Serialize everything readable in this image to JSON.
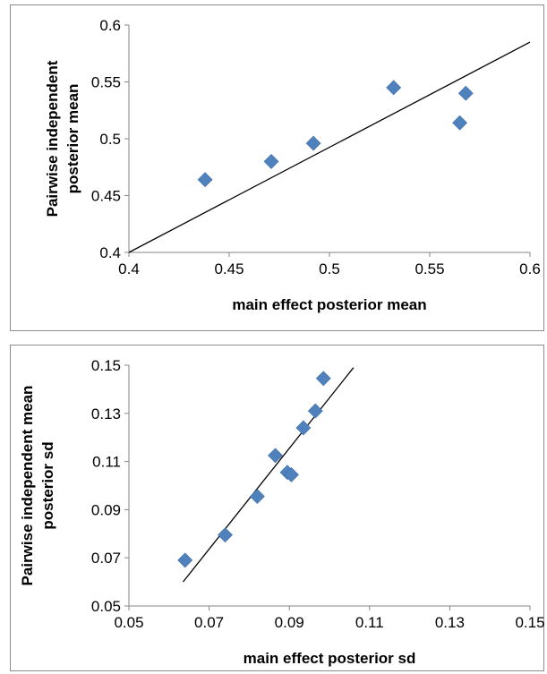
{
  "chart_data": [
    {
      "type": "scatter",
      "title": "",
      "xlabel": "main effect posterior mean",
      "ylabel_lines": [
        "Pairwise independent",
        "posterior mean"
      ],
      "xlim": [
        0.4,
        0.6
      ],
      "ylim": [
        0.4,
        0.6
      ],
      "xticks": [
        "0.4",
        "0.45",
        "0.5",
        "0.55",
        "0.6"
      ],
      "yticks": [
        "0.4",
        "0.45",
        "0.5",
        "0.55",
        "0.6"
      ],
      "grid": false,
      "marker": "diamond",
      "marker_color": "#4f81bd",
      "points": [
        {
          "x": 0.438,
          "y": 0.464
        },
        {
          "x": 0.471,
          "y": 0.48
        },
        {
          "x": 0.492,
          "y": 0.496
        },
        {
          "x": 0.532,
          "y": 0.545
        },
        {
          "x": 0.565,
          "y": 0.514
        },
        {
          "x": 0.568,
          "y": 0.54
        }
      ],
      "line": {
        "x": [
          0.4,
          0.6
        ],
        "y": [
          0.4,
          0.585
        ]
      }
    },
    {
      "type": "scatter",
      "title": "",
      "xlabel": "main effect posterior sd",
      "ylabel_lines": [
        "Pairwise independent mean",
        "posterior sd"
      ],
      "xlim": [
        0.05,
        0.15
      ],
      "ylim": [
        0.05,
        0.15
      ],
      "xticks": [
        "0.05",
        "0.07",
        "0.09",
        "0.11",
        "0.13",
        "0.15"
      ],
      "yticks": [
        "0.05",
        "0.07",
        "0.09",
        "0.11",
        "0.13",
        "0.15"
      ],
      "grid": false,
      "marker": "diamond",
      "marker_color": "#4f81bd",
      "points": [
        {
          "x": 0.064,
          "y": 0.069
        },
        {
          "x": 0.074,
          "y": 0.0795
        },
        {
          "x": 0.082,
          "y": 0.0955
        },
        {
          "x": 0.0865,
          "y": 0.1125
        },
        {
          "x": 0.0895,
          "y": 0.1055
        },
        {
          "x": 0.0905,
          "y": 0.1045
        },
        {
          "x": 0.0935,
          "y": 0.124
        },
        {
          "x": 0.0965,
          "y": 0.131
        },
        {
          "x": 0.0985,
          "y": 0.1445
        }
      ],
      "line": {
        "x": [
          0.0635,
          0.106
        ],
        "y": [
          0.06,
          0.149
        ]
      }
    }
  ]
}
